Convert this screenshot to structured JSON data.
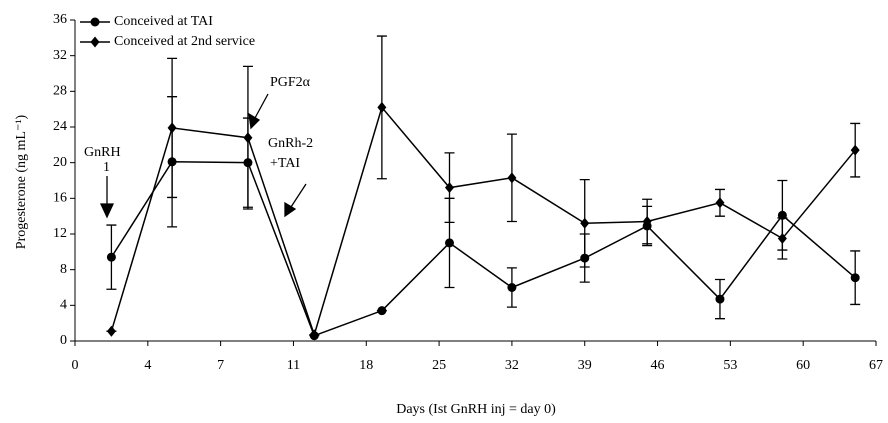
{
  "chart_data": {
    "type": "line",
    "x_label": "Days (Ist GnRH inj = day 0)",
    "y_label": "Progesterone (ng mL⁻¹)",
    "x": [
      2,
      5,
      8.5,
      13,
      19.5,
      26,
      32,
      39,
      45,
      52,
      58,
      65
    ],
    "series": [
      {
        "name": "Conceived at TAI",
        "color": "#000000",
        "marker": "circle",
        "values": [
          9.4,
          20.1,
          20,
          0.6,
          3.4,
          11,
          6,
          9.3,
          12.9,
          4.7,
          14.1,
          7.1
        ],
        "errors": [
          3.6,
          7.3,
          5,
          0,
          0,
          5,
          2.2,
          2.7,
          2.2,
          2.2,
          3.9,
          3
        ]
      },
      {
        "name": "Conceived at 2nd service",
        "color": "#000000",
        "marker": "diamond",
        "values": [
          1.1,
          23.9,
          22.8,
          0.7,
          26.2,
          17.2,
          18.3,
          13.2,
          13.4,
          15.5,
          11.5,
          21.4
        ],
        "errors": [
          0,
          7.8,
          8,
          0,
          8,
          3.9,
          4.9,
          4.9,
          2.5,
          1.5,
          2.3,
          3
        ]
      }
    ],
    "annotations": [
      "GnRH",
      "1",
      "PGF2α",
      "GnRh-2",
      "+TAI"
    ],
    "xlim": [
      0,
      67
    ],
    "xticks": [
      0,
      4,
      7,
      11,
      18,
      25,
      32,
      39,
      46,
      53,
      60,
      67
    ],
    "ylim": [
      0,
      36
    ],
    "yticks": [
      0,
      4,
      8,
      12,
      16,
      20,
      24,
      28,
      32,
      36
    ],
    "legend": "top-left"
  }
}
